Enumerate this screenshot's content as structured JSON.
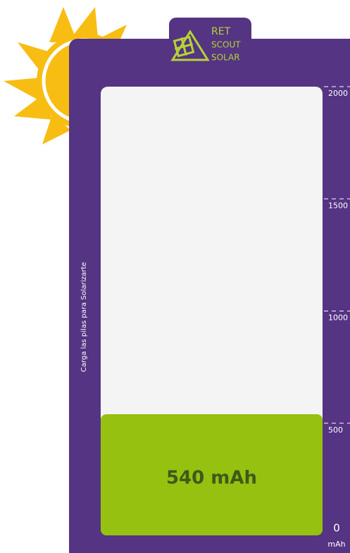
{
  "chart_data": {
    "type": "bar",
    "logo": [
      "RET",
      "SCOUT",
      "SOLAR"
    ],
    "subtitle": "Carga las pilas para Solarizarte",
    "ylabel": "mAh",
    "values": [
      540
    ],
    "value_labels": [
      "540 mAh"
    ],
    "color": "#96c110",
    "ylim": [
      0,
      2000
    ],
    "yticks": [
      0,
      500,
      1000,
      1500,
      2000
    ]
  }
}
